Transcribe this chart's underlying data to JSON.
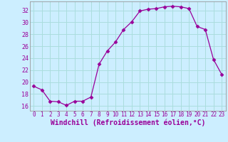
{
  "x": [
    0,
    1,
    2,
    3,
    4,
    5,
    6,
    7,
    8,
    9,
    10,
    11,
    12,
    13,
    14,
    15,
    16,
    17,
    18,
    19,
    20,
    21,
    22,
    23
  ],
  "y": [
    19.3,
    18.7,
    16.8,
    16.7,
    16.1,
    16.8,
    16.8,
    17.5,
    23.0,
    25.2,
    26.7,
    28.8,
    30.1,
    31.9,
    32.2,
    32.3,
    32.6,
    32.7,
    32.6,
    32.3,
    29.3,
    28.8,
    23.8,
    21.3
  ],
  "line_color": "#990099",
  "marker": "D",
  "marker_size": 2.5,
  "bg_color": "#cceeff",
  "grid_color": "#aadddd",
  "xlabel": "Windchill (Refroidissement éolien,°C)",
  "xlabel_color": "#990099",
  "ylabel_ticks": [
    16,
    18,
    20,
    22,
    24,
    26,
    28,
    30,
    32
  ],
  "xtick_labels": [
    "0",
    "1",
    "2",
    "3",
    "4",
    "5",
    "6",
    "7",
    "8",
    "9",
    "10",
    "11",
    "12",
    "13",
    "14",
    "15",
    "16",
    "17",
    "18",
    "19",
    "20",
    "21",
    "22",
    "23"
  ],
  "xlim": [
    -0.5,
    23.5
  ],
  "ylim": [
    15.2,
    33.5
  ],
  "tick_color": "#990099",
  "xlabel_fontsize": 7.0,
  "tick_fontsize": 5.5
}
